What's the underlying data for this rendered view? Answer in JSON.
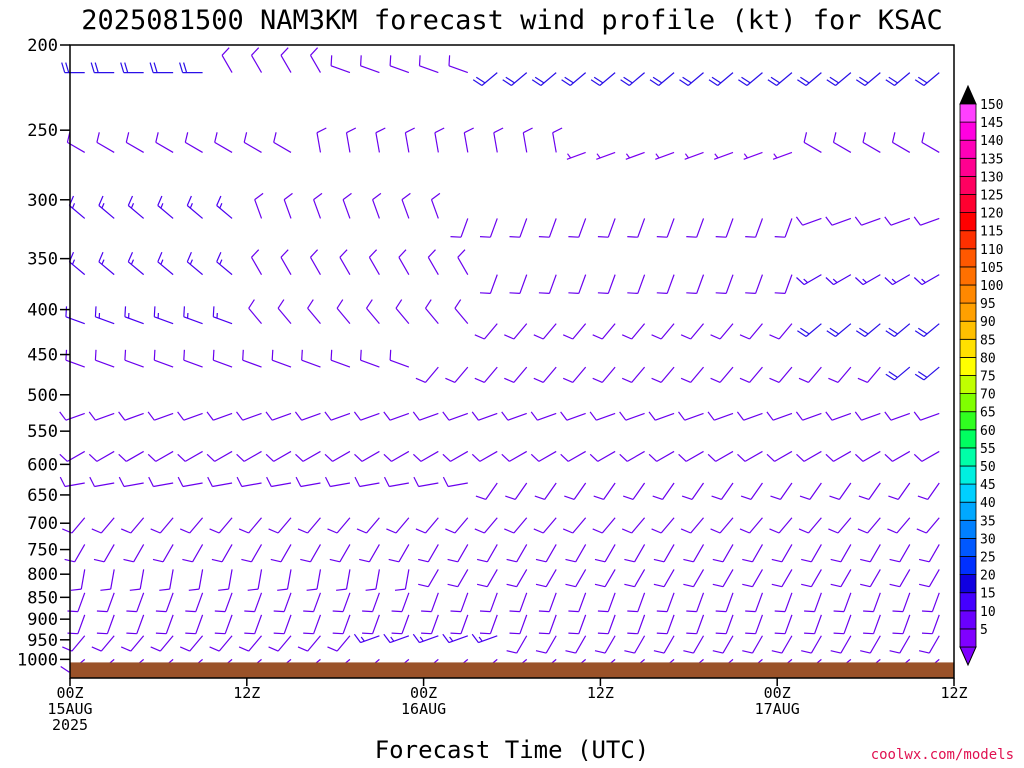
{
  "title": "2025081500 NAM3KM forecast wind profile (kt) for KSAC",
  "credit": "coolwx.com/models",
  "colors": {
    "ground": "#9a5229",
    "barb_default": "#6a00ee",
    "credit": "#e01050"
  },
  "chart_data": {
    "type": "wind-barb-profile",
    "title": "2025081500 NAM3KM forecast wind profile (kt) for KSAC",
    "xlabel": "Forecast Time (UTC)",
    "ylabel": "",
    "units": "kt",
    "y_axis": {
      "scale": "log-pressure",
      "range": [
        1050,
        200
      ],
      "ticks": [
        200,
        250,
        300,
        350,
        400,
        450,
        500,
        550,
        600,
        650,
        700,
        750,
        800,
        850,
        900,
        950,
        1000
      ]
    },
    "x_axis": {
      "range_hours": [
        0,
        60
      ],
      "ticks": [
        {
          "hour": 0,
          "lines": [
            "00Z",
            "15AUG",
            "2025"
          ]
        },
        {
          "hour": 12,
          "lines": [
            "12Z"
          ]
        },
        {
          "hour": 24,
          "lines": [
            "00Z",
            "16AUG"
          ]
        },
        {
          "hour": 36,
          "lines": [
            "12Z"
          ]
        },
        {
          "hour": 48,
          "lines": [
            "00Z",
            "17AUG"
          ]
        },
        {
          "hour": 60,
          "lines": [
            "12Z"
          ]
        }
      ]
    },
    "surface_pressure": 1008,
    "colorbar": {
      "min_arrow_color": "#8000ff",
      "max_arrow_color": "#000000",
      "levels": [
        {
          "label": "5",
          "color": "#8000ff"
        },
        {
          "label": "10",
          "color": "#6a00ff"
        },
        {
          "label": "15",
          "color": "#4400ff"
        },
        {
          "label": "20",
          "color": "#1000e0"
        },
        {
          "label": "25",
          "color": "#0030ff"
        },
        {
          "label": "30",
          "color": "#0058ff"
        },
        {
          "label": "35",
          "color": "#0080ff"
        },
        {
          "label": "40",
          "color": "#00a8ff"
        },
        {
          "label": "45",
          "color": "#00d0ff"
        },
        {
          "label": "50",
          "color": "#00f0e0"
        },
        {
          "label": "55",
          "color": "#00ffa8"
        },
        {
          "label": "60",
          "color": "#00ff60"
        },
        {
          "label": "65",
          "color": "#30ff20"
        },
        {
          "label": "70",
          "color": "#80ff00"
        },
        {
          "label": "75",
          "color": "#c0ff00"
        },
        {
          "label": "80",
          "color": "#ffff00"
        },
        {
          "label": "85",
          "color": "#ffe000"
        },
        {
          "label": "90",
          "color": "#ffc000"
        },
        {
          "label": "95",
          "color": "#ffa000"
        },
        {
          "label": "100",
          "color": "#ff8800"
        },
        {
          "label": "105",
          "color": "#ff7000"
        },
        {
          "label": "110",
          "color": "#ff5800"
        },
        {
          "label": "115",
          "color": "#ff3000"
        },
        {
          "label": "120",
          "color": "#ff0000"
        },
        {
          "label": "125",
          "color": "#ff0030"
        },
        {
          "label": "130",
          "color": "#ff0060"
        },
        {
          "label": "135",
          "color": "#ff0090"
        },
        {
          "label": "140",
          "color": "#ff00b8"
        },
        {
          "label": "145",
          "color": "#ff00e0"
        },
        {
          "label": "150",
          "color": "#ff40ff"
        }
      ]
    },
    "barb_rows": [
      {
        "pressure": 215,
        "segments": [
          {
            "from_h": 0,
            "to_h": 9,
            "dir": 270,
            "speed": 20,
            "color": "#2a10e8"
          },
          {
            "from_h": 10,
            "to_h": 18,
            "dir": 330,
            "speed": 10,
            "color": "#6a00ee"
          },
          {
            "from_h": 19,
            "to_h": 28,
            "dir": 290,
            "speed": 10,
            "color": "#6a00ee"
          },
          {
            "from_h": 29,
            "to_h": 60,
            "dir": 230,
            "speed": 20,
            "color": "#2a10e8"
          }
        ]
      },
      {
        "pressure": 265,
        "segments": [
          {
            "from_h": 0,
            "to_h": 15,
            "dir": 300,
            "speed": 10,
            "color": "#6a00ee"
          },
          {
            "from_h": 16,
            "to_h": 33,
            "dir": 350,
            "speed": 10,
            "color": "#6a00ee"
          },
          {
            "from_h": 34,
            "to_h": 50,
            "dir": 250,
            "speed": 5,
            "color": "#7a00f0"
          },
          {
            "from_h": 51,
            "to_h": 60,
            "dir": 300,
            "speed": 10,
            "color": "#6a00ee"
          }
        ]
      },
      {
        "pressure": 315,
        "segments": [
          {
            "from_h": 0,
            "to_h": 12,
            "dir": 310,
            "speed": 15,
            "color": "#4a00f0"
          },
          {
            "from_h": 13,
            "to_h": 26,
            "dir": 340,
            "speed": 10,
            "color": "#6a00ee"
          },
          {
            "from_h": 27,
            "to_h": 50,
            "dir": 200,
            "speed": 10,
            "color": "#6a00ee"
          },
          {
            "from_h": 51,
            "to_h": 60,
            "dir": 250,
            "speed": 10,
            "color": "#6a00ee"
          }
        ]
      },
      {
        "pressure": 365,
        "segments": [
          {
            "from_h": 0,
            "to_h": 11,
            "dir": 310,
            "speed": 15,
            "color": "#4a00f0"
          },
          {
            "from_h": 12,
            "to_h": 28,
            "dir": 330,
            "speed": 10,
            "color": "#6a00ee"
          },
          {
            "from_h": 29,
            "to_h": 50,
            "dir": 200,
            "speed": 10,
            "color": "#6a00ee"
          },
          {
            "from_h": 51,
            "to_h": 60,
            "dir": 240,
            "speed": 15,
            "color": "#4a00f0"
          }
        ]
      },
      {
        "pressure": 415,
        "segments": [
          {
            "from_h": 0,
            "to_h": 12,
            "dir": 290,
            "speed": 15,
            "color": "#4a00f0"
          },
          {
            "from_h": 13,
            "to_h": 27,
            "dir": 320,
            "speed": 10,
            "color": "#6a00ee"
          },
          {
            "from_h": 28,
            "to_h": 50,
            "dir": 220,
            "speed": 10,
            "color": "#6a00ee"
          },
          {
            "from_h": 51,
            "to_h": 60,
            "dir": 230,
            "speed": 20,
            "color": "#2a10e8"
          }
        ]
      },
      {
        "pressure": 465,
        "segments": [
          {
            "from_h": 0,
            "to_h": 24,
            "dir": 290,
            "speed": 10,
            "color": "#6a00ee"
          },
          {
            "from_h": 25,
            "to_h": 56,
            "dir": 220,
            "speed": 10,
            "color": "#6a00ee"
          },
          {
            "from_h": 57,
            "to_h": 60,
            "dir": 230,
            "speed": 20,
            "color": "#2a10e8"
          }
        ]
      },
      {
        "pressure": 525,
        "segments": [
          {
            "from_h": 0,
            "to_h": 60,
            "dir": 250,
            "speed": 10,
            "color": "#6a00ee"
          }
        ]
      },
      {
        "pressure": 580,
        "segments": [
          {
            "from_h": 0,
            "to_h": 60,
            "dir": 240,
            "speed": 10,
            "color": "#6a00ee"
          }
        ]
      },
      {
        "pressure": 630,
        "segments": [
          {
            "from_h": 0,
            "to_h": 28,
            "dir": 260,
            "speed": 10,
            "color": "#6a00ee"
          },
          {
            "from_h": 29,
            "to_h": 60,
            "dir": 215,
            "speed": 10,
            "color": "#6a00ee"
          }
        ]
      },
      {
        "pressure": 690,
        "segments": [
          {
            "from_h": 0,
            "to_h": 60,
            "dir": 220,
            "speed": 10,
            "color": "#6a00ee"
          }
        ]
      },
      {
        "pressure": 740,
        "segments": [
          {
            "from_h": 0,
            "to_h": 60,
            "dir": 210,
            "speed": 10,
            "color": "#6a00ee"
          }
        ]
      },
      {
        "pressure": 790,
        "segments": [
          {
            "from_h": 0,
            "to_h": 24,
            "dir": 190,
            "speed": 10,
            "color": "#6a00ee"
          },
          {
            "from_h": 25,
            "to_h": 60,
            "dir": 210,
            "speed": 10,
            "color": "#6a00ee"
          }
        ]
      },
      {
        "pressure": 840,
        "segments": [
          {
            "from_h": 0,
            "to_h": 60,
            "dir": 200,
            "speed": 10,
            "color": "#6a00ee"
          }
        ]
      },
      {
        "pressure": 890,
        "segments": [
          {
            "from_h": 0,
            "to_h": 60,
            "dir": 200,
            "speed": 10,
            "color": "#6a00ee"
          }
        ]
      },
      {
        "pressure": 940,
        "segments": [
          {
            "from_h": 0,
            "to_h": 20,
            "dir": 220,
            "speed": 10,
            "color": "#6a00ee"
          },
          {
            "from_h": 21,
            "to_h": 30,
            "dir": 250,
            "speed": 15,
            "color": "#4a00f0"
          },
          {
            "from_h": 31,
            "to_h": 60,
            "dir": 210,
            "speed": 10,
            "color": "#6a00ee"
          }
        ]
      },
      {
        "pressure": 1000,
        "segments": [
          {
            "from_h": 0,
            "to_h": 60,
            "dir": 230,
            "speed": 10,
            "color": "#6a00ee"
          }
        ]
      }
    ],
    "barb_rows_note": "Approximate: directions and speeds estimated from the plotted barbs"
  }
}
